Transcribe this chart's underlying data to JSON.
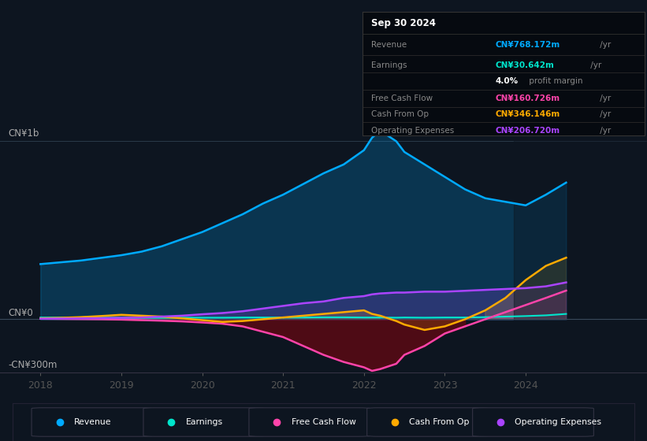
{
  "background_color": "#0d1520",
  "chart_bg": "#0d1520",
  "ylim": [
    -300,
    1100
  ],
  "xlim": [
    2017.5,
    2025.5
  ],
  "xticks": [
    2018,
    2019,
    2020,
    2021,
    2022,
    2023,
    2024
  ],
  "revenue_color": "#00aaff",
  "earnings_color": "#00e5cc",
  "fcf_color": "#ff44aa",
  "cashfromop_color": "#ffaa00",
  "opex_color": "#aa44ff",
  "legend_items": [
    "Revenue",
    "Earnings",
    "Free Cash Flow",
    "Cash From Op",
    "Operating Expenses"
  ],
  "legend_colors": [
    "#00aaff",
    "#00e5cc",
    "#ff44aa",
    "#ffaa00",
    "#aa44ff"
  ],
  "tooltip": {
    "date": "Sep 30 2024",
    "rows": [
      {
        "label": "Revenue",
        "value": "CN¥768.172m",
        "color": "#00aaff",
        "extra": " /yr"
      },
      {
        "label": "Earnings",
        "value": "CN¥30.642m",
        "color": "#00e5cc",
        "extra": " /yr"
      },
      {
        "label": "",
        "value": "4.0%",
        "color": "white",
        "extra": " profit margin",
        "bold_value": true
      },
      {
        "label": "Free Cash Flow",
        "value": "CN¥160.726m",
        "color": "#ff44aa",
        "extra": " /yr"
      },
      {
        "label": "Cash From Op",
        "value": "CN¥346.146m",
        "color": "#ffaa00",
        "extra": " /yr"
      },
      {
        "label": "Operating Expenses",
        "value": "CN¥206.720m",
        "color": "#aa44ff",
        "extra": " /yr"
      }
    ]
  },
  "x": [
    2018.0,
    2018.25,
    2018.5,
    2018.75,
    2019.0,
    2019.25,
    2019.5,
    2019.75,
    2020.0,
    2020.25,
    2020.5,
    2020.75,
    2021.0,
    2021.25,
    2021.5,
    2021.75,
    2022.0,
    2022.1,
    2022.2,
    2022.4,
    2022.5,
    2022.75,
    2023.0,
    2023.25,
    2023.5,
    2023.75,
    2024.0,
    2024.25,
    2024.5
  ],
  "revenue": [
    310,
    320,
    330,
    345,
    360,
    380,
    410,
    450,
    490,
    540,
    590,
    650,
    700,
    760,
    820,
    870,
    950,
    1020,
    1060,
    1000,
    940,
    870,
    800,
    730,
    680,
    660,
    640,
    700,
    768
  ],
  "earnings": [
    10,
    10,
    10,
    9,
    8,
    8,
    8,
    9,
    9,
    9,
    10,
    10,
    10,
    10,
    11,
    11,
    10,
    10,
    10,
    9,
    10,
    9,
    10,
    10,
    12,
    15,
    18,
    22,
    30
  ],
  "fcf": [
    3,
    2,
    1,
    0,
    -2,
    -5,
    -8,
    -12,
    -18,
    -25,
    -40,
    -70,
    -100,
    -150,
    -200,
    -240,
    -270,
    -290,
    -280,
    -250,
    -200,
    -150,
    -80,
    -40,
    0,
    40,
    80,
    120,
    161
  ],
  "cashfromop": [
    5,
    8,
    12,
    18,
    25,
    20,
    15,
    5,
    -5,
    -15,
    -10,
    0,
    10,
    20,
    30,
    40,
    50,
    30,
    20,
    -10,
    -30,
    -60,
    -40,
    0,
    50,
    120,
    220,
    300,
    346
  ],
  "opex": [
    3,
    4,
    5,
    6,
    8,
    10,
    15,
    20,
    28,
    35,
    45,
    60,
    75,
    90,
    100,
    120,
    130,
    140,
    145,
    150,
    150,
    155,
    155,
    160,
    165,
    170,
    175,
    185,
    207
  ]
}
